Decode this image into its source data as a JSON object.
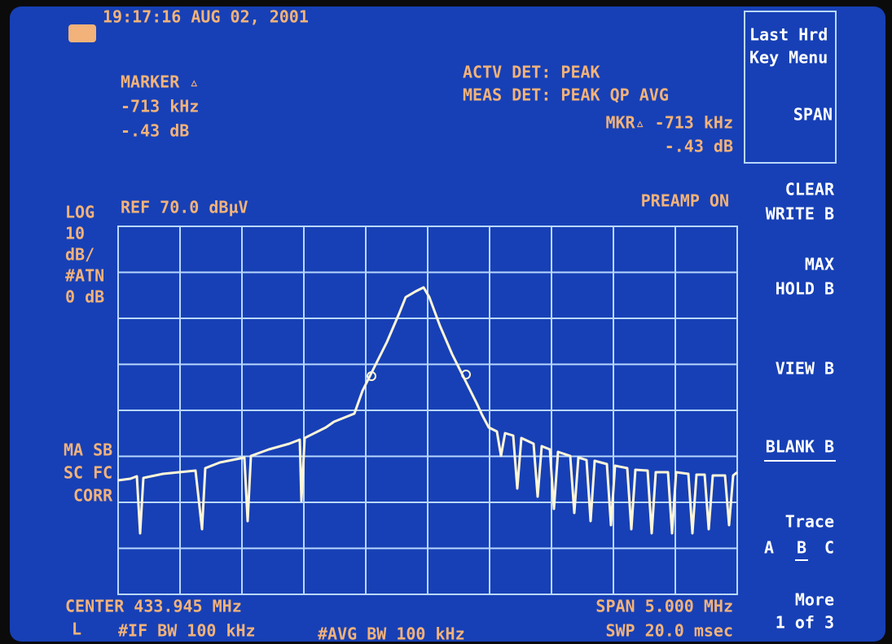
{
  "header": {
    "timestamp": "19:17:16 AUG 02, 2001"
  },
  "marker": {
    "title": "MARKER ▵",
    "frequency": "-713 kHz",
    "level": "-.43 dB"
  },
  "detector": {
    "active": "ACTV DET: PEAK",
    "measured": "MEAS DET: PEAK QP AVG"
  },
  "marker_readout": {
    "frequency": "MKR▵ -713 kHz",
    "level": "-.43 dB"
  },
  "scale": {
    "reference": "REF 70.0 dBµV",
    "preamp": "PREAMP ON",
    "left": [
      "LOG",
      "10",
      "dB/",
      "#ATN",
      "0 dB"
    ]
  },
  "corrections": [
    "MA SB",
    "SC FC",
    "CORR"
  ],
  "footer": {
    "center": "CENTER 433.945 MHz",
    "span": "SPAN 5.000 MHz",
    "mode": "L",
    "if_bw": "#IF BW 100 kHz",
    "avg_bw": "#AVG BW 100 kHz",
    "sweep": "SWP 20.0 msec"
  },
  "softkeys": {
    "menu": [
      "Last Hrd",
      "Key Menu"
    ],
    "span": "SPAN",
    "clear_write": [
      "CLEAR",
      "WRITE B"
    ],
    "max_hold": [
      "MAX",
      "HOLD B"
    ],
    "view": "VIEW B",
    "blank": "BLANK B",
    "trace": "Trace",
    "trace_options": [
      "A",
      "B",
      "C"
    ],
    "more": [
      "More",
      "1 of 3"
    ]
  }
}
